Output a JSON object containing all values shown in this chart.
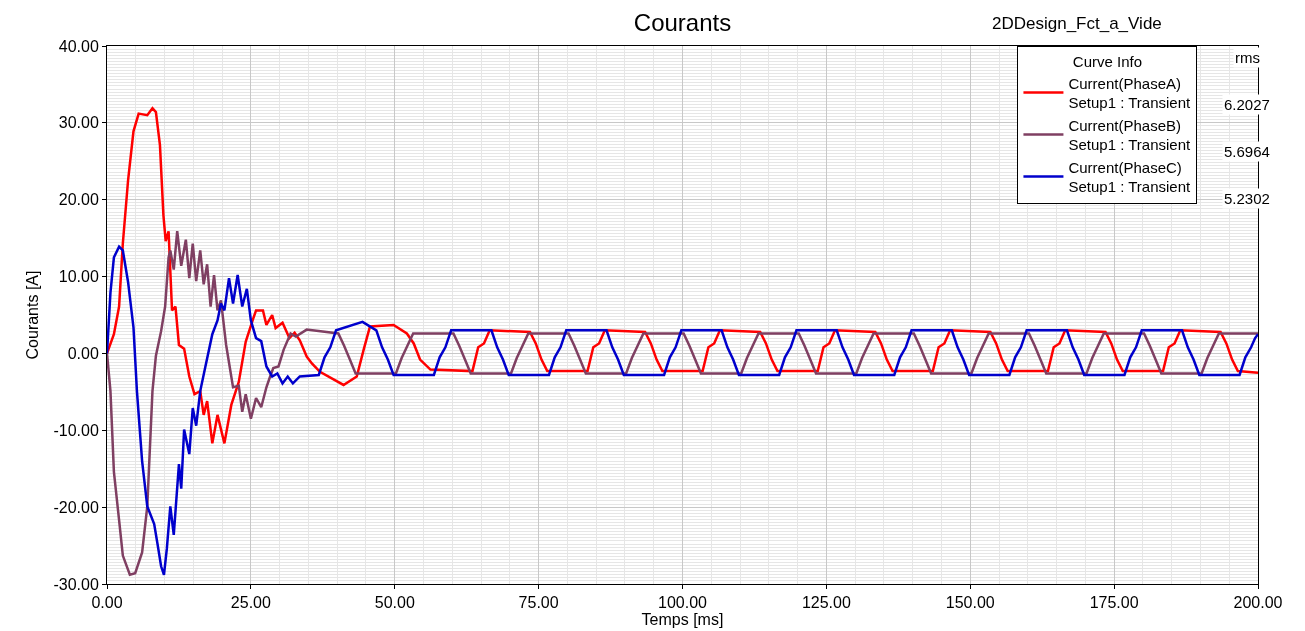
{
  "chart_data": {
    "type": "line",
    "title": "Courants",
    "subtitle": "2DDesign_Fct_a_Vide",
    "xlabel": "Temps [ms]",
    "ylabel": "Courants [A]",
    "legend_title": "Curve Info",
    "annotations": [
      "rms",
      "6.2027",
      "5.6964",
      "5.2302"
    ],
    "xlim": [
      0,
      200
    ],
    "ylim": [
      -30,
      40
    ],
    "xticks": [
      {
        "value": 0,
        "label": "0.00"
      },
      {
        "value": 25,
        "label": "25.00"
      },
      {
        "value": 50,
        "label": "50.00"
      },
      {
        "value": 75,
        "label": "75.00"
      },
      {
        "value": 100,
        "label": "100.00"
      },
      {
        "value": 125,
        "label": "125.00"
      },
      {
        "value": 150,
        "label": "150.00"
      },
      {
        "value": 175,
        "label": "175.00"
      },
      {
        "value": 200,
        "label": "200.00"
      }
    ],
    "yticks": [
      {
        "value": -30,
        "label": "-30.00"
      },
      {
        "value": -20,
        "label": "-20.00"
      },
      {
        "value": -10,
        "label": "-10.00"
      },
      {
        "value": 0,
        "label": "0.00"
      },
      {
        "value": 10,
        "label": "10.00"
      },
      {
        "value": 20,
        "label": "20.00"
      },
      {
        "value": 30,
        "label": "30.00"
      },
      {
        "value": 40,
        "label": "40.00"
      }
    ],
    "grid": true,
    "legend": "top right",
    "marker": "none",
    "line_style": "solid",
    "series": [
      {
        "name": "Current(PhaseA)\nSetup1 : Transient",
        "color": "#ff0000",
        "x": [
          0,
          1.2,
          2.1,
          2.75,
          3.66,
          4.6,
          5.5,
          7.0,
          7.9,
          8.5,
          9.2,
          9.8,
          10.2,
          10.7,
          11.3,
          11.9,
          12.5,
          13.4,
          14.3,
          15.2,
          16.2,
          16.8,
          17.4,
          18.3,
          19.2,
          20.4,
          21.6,
          22.9,
          24.1,
          25.3,
          25.9,
          27.1,
          27.7,
          28.7,
          29.3,
          30.5,
          31.7,
          32.6,
          33.5,
          34.7,
          35.6,
          37.0,
          41.1,
          43.4,
          44.6,
          45.7,
          49.8,
          52.1,
          53.3,
          54.4,
          56.2,
          63.5,
          64.5,
          65.5,
          66.5,
          73.5,
          74.5,
          75.5,
          76.5,
          83.5,
          84.5,
          85.5,
          86.5,
          93.5,
          94.5,
          95.5,
          96.5,
          103.5,
          104.5,
          105.5,
          106.5,
          113.5,
          114.5,
          115.5,
          116.5,
          123.5,
          124.5,
          125.5,
          126.5,
          133.5,
          134.5,
          135.5,
          136.5,
          143.5,
          144.5,
          145.5,
          146.5,
          153.5,
          154.5,
          155.5,
          156.5,
          163.5,
          164.5,
          165.5,
          166.5,
          173.5,
          174.5,
          175.5,
          176.5,
          183.5,
          184.5,
          185.5,
          186.5,
          193.5,
          194.5,
          195.5,
          196.5,
          200
        ],
        "values": [
          0,
          2.5,
          6.1,
          14.3,
          22.5,
          28.9,
          31.2,
          31.0,
          31.9,
          31.4,
          27.1,
          18.0,
          14.6,
          15.9,
          5.6,
          6.1,
          1.1,
          0.6,
          -3.0,
          -5.3,
          -4.9,
          -8.0,
          -6.2,
          -11.7,
          -8.0,
          -11.7,
          -6.7,
          -3.7,
          1.5,
          4.3,
          5.6,
          5.6,
          3.7,
          5.0,
          3.3,
          4.0,
          2.0,
          2.7,
          1.7,
          -0.4,
          -1.3,
          -2.4,
          -4.1,
          -3.0,
          0.5,
          3.5,
          3.7,
          2.6,
          1.3,
          -0.8,
          -2.1,
          -2.3,
          0.8,
          1.3,
          3.0,
          2.8,
          1.3,
          -0.8,
          -2.3,
          -2.3,
          0.8,
          1.3,
          3.0,
          2.8,
          1.3,
          -0.8,
          -2.3,
          -2.3,
          0.8,
          1.3,
          3.0,
          2.8,
          1.3,
          -0.8,
          -2.3,
          -2.3,
          0.8,
          1.3,
          3.0,
          2.8,
          1.3,
          -0.8,
          -2.3,
          -2.3,
          0.8,
          1.3,
          3.0,
          2.8,
          1.3,
          -0.8,
          -2.3,
          -2.3,
          0.8,
          1.3,
          3.0,
          2.8,
          1.3,
          -0.8,
          -2.3,
          -2.3,
          0.8,
          1.3,
          3.0,
          2.8,
          1.3,
          -0.8,
          -2.3,
          -2.5
        ]
      },
      {
        "name": "Current(PhaseB)\nSetup1 : Transient",
        "color": "#7f3f62",
        "x": [
          0,
          0.6,
          1.2,
          2.1,
          2.75,
          3.97,
          4.9,
          6.1,
          7.0,
          7.9,
          8.5,
          9.4,
          10.1,
          10.7,
          11.0,
          11.6,
          12.2,
          12.9,
          13.7,
          14.3,
          14.9,
          15.5,
          16.2,
          16.8,
          17.4,
          18.0,
          18.6,
          19.2,
          19.8,
          20.7,
          21.9,
          22.9,
          23.5,
          24.1,
          25.0,
          25.9,
          26.8,
          27.7,
          28.3,
          28.9,
          29.8,
          30.7,
          31.9,
          32.8,
          34.7,
          40.2,
          41.2,
          42.2,
          43.2,
          50.2,
          51.2,
          52.2,
          53.2,
          60.2,
          61.2,
          62.2,
          63.2,
          70.2,
          71.2,
          72.2,
          73.2,
          80.2,
          81.2,
          82.2,
          83.2,
          90.2,
          91.2,
          92.2,
          93.2,
          100.2,
          101.2,
          102.2,
          103.2,
          110.2,
          111.2,
          112.2,
          113.2,
          120.2,
          121.2,
          122.2,
          123.2,
          130.2,
          131.2,
          132.2,
          133.2,
          140.2,
          141.2,
          142.2,
          143.2,
          150.2,
          151.2,
          152.2,
          153.2,
          160.2,
          161.2,
          162.2,
          163.2,
          170.2,
          171.2,
          172.2,
          173.2,
          180.2,
          181.2,
          182.2,
          183.2,
          190.2,
          191.2,
          192.2,
          193.2,
          200
        ],
        "values": [
          0,
          -4.9,
          -15.4,
          -21.7,
          -26.3,
          -28.8,
          -28.6,
          -25.9,
          -19.9,
          -4.9,
          -0.3,
          2.9,
          6.1,
          12.5,
          13.4,
          10.9,
          15.9,
          11.4,
          14.8,
          9.8,
          14.3,
          9.4,
          13.4,
          9.0,
          11.6,
          6.1,
          10.2,
          5.6,
          6.9,
          1.1,
          -4.4,
          -4.2,
          -7.6,
          -5.3,
          -8.5,
          -5.8,
          -7.0,
          -4.4,
          -3.1,
          -1.9,
          -1.7,
          0.5,
          2.6,
          2.2,
          3.1,
          2.6,
          1.0,
          -0.8,
          -2.6,
          -2.6,
          -0.6,
          1.0,
          2.6,
          2.6,
          1.0,
          -0.8,
          -2.6,
          -2.6,
          -0.6,
          1.0,
          2.6,
          2.6,
          1.0,
          -0.8,
          -2.6,
          -2.6,
          -0.6,
          1.0,
          2.6,
          2.6,
          1.0,
          -0.8,
          -2.6,
          -2.6,
          -0.6,
          1.0,
          2.6,
          2.6,
          1.0,
          -0.8,
          -2.6,
          -2.6,
          -0.6,
          1.0,
          2.6,
          2.6,
          1.0,
          -0.8,
          -2.6,
          -2.6,
          -0.6,
          1.0,
          2.6,
          2.6,
          1.0,
          -0.8,
          -2.6,
          -2.6,
          -0.6,
          1.0,
          2.6,
          2.6,
          1.0,
          -0.8,
          -2.6,
          -2.6,
          -0.6,
          1.0,
          2.6,
          2.6
        ]
      },
      {
        "name": "Current(PhaseC)\nSetup1 : Transient",
        "color": "#0000cc",
        "x": [
          0,
          0.6,
          1.2,
          2.1,
          2.75,
          3.66,
          4.6,
          5.2,
          6.1,
          7.0,
          8.2,
          8.8,
          9.4,
          9.9,
          10.4,
          11.0,
          11.6,
          12.5,
          12.9,
          13.4,
          14.3,
          14.9,
          15.5,
          16.2,
          17.1,
          18.3,
          19.2,
          19.8,
          20.4,
          21.2,
          21.9,
          22.7,
          23.5,
          24.3,
          25.0,
          25.9,
          26.8,
          27.7,
          28.7,
          29.6,
          30.5,
          31.4,
          32.3,
          33.5,
          36.8,
          37.8,
          38.8,
          39.8,
          44.4,
          46.8,
          47.8,
          48.8,
          49.8,
          56.8,
          57.8,
          58.8,
          59.8,
          66.8,
          67.8,
          68.8,
          69.8,
          76.8,
          77.8,
          78.8,
          79.8,
          86.8,
          87.8,
          88.8,
          89.8,
          96.8,
          97.8,
          98.8,
          99.8,
          106.8,
          107.8,
          108.8,
          109.8,
          116.8,
          117.8,
          118.8,
          119.8,
          126.8,
          127.8,
          128.8,
          129.8,
          136.8,
          137.8,
          138.8,
          139.8,
          146.8,
          147.8,
          148.8,
          149.8,
          156.8,
          157.8,
          158.8,
          159.8,
          166.8,
          167.8,
          168.8,
          169.8,
          176.8,
          177.8,
          178.8,
          179.8,
          186.8,
          187.8,
          188.8,
          189.8,
          196.8,
          197.8,
          198.8,
          199.5,
          200
        ],
        "values": [
          0,
          7.9,
          12.5,
          13.9,
          13.4,
          9.3,
          3.4,
          -4.9,
          -14.0,
          -19.9,
          -22.2,
          -24.9,
          -27.7,
          -28.8,
          -25.4,
          -19.9,
          -23.6,
          -14.4,
          -17.6,
          -9.9,
          -13.1,
          -7.1,
          -9.4,
          -4.9,
          -1.7,
          2.5,
          4.3,
          6.5,
          5.6,
          9.8,
          6.5,
          10.2,
          6.1,
          8.4,
          4.3,
          2.0,
          1.6,
          -1.7,
          -3.0,
          -2.6,
          -3.9,
          -3.0,
          -3.9,
          -3.0,
          -2.8,
          -0.5,
          0.8,
          3.0,
          4.1,
          3.0,
          0.8,
          -0.8,
          -2.8,
          -2.8,
          -0.5,
          0.8,
          3.0,
          3.0,
          0.8,
          -0.8,
          -2.8,
          -2.8,
          -0.5,
          0.8,
          3.0,
          3.0,
          0.8,
          -0.8,
          -2.8,
          -2.8,
          -0.5,
          0.8,
          3.0,
          3.0,
          0.8,
          -0.8,
          -2.8,
          -2.8,
          -0.5,
          0.8,
          3.0,
          3.0,
          0.8,
          -0.8,
          -2.8,
          -2.8,
          -0.5,
          0.8,
          3.0,
          3.0,
          0.8,
          -0.8,
          -2.8,
          -2.8,
          -0.5,
          0.8,
          3.0,
          3.0,
          0.8,
          -0.8,
          -2.8,
          -2.8,
          -0.5,
          0.8,
          3.0,
          3.0,
          0.8,
          -0.8,
          -2.8,
          -2.8,
          -0.5,
          0.8,
          2.0,
          2.5
        ]
      }
    ]
  }
}
